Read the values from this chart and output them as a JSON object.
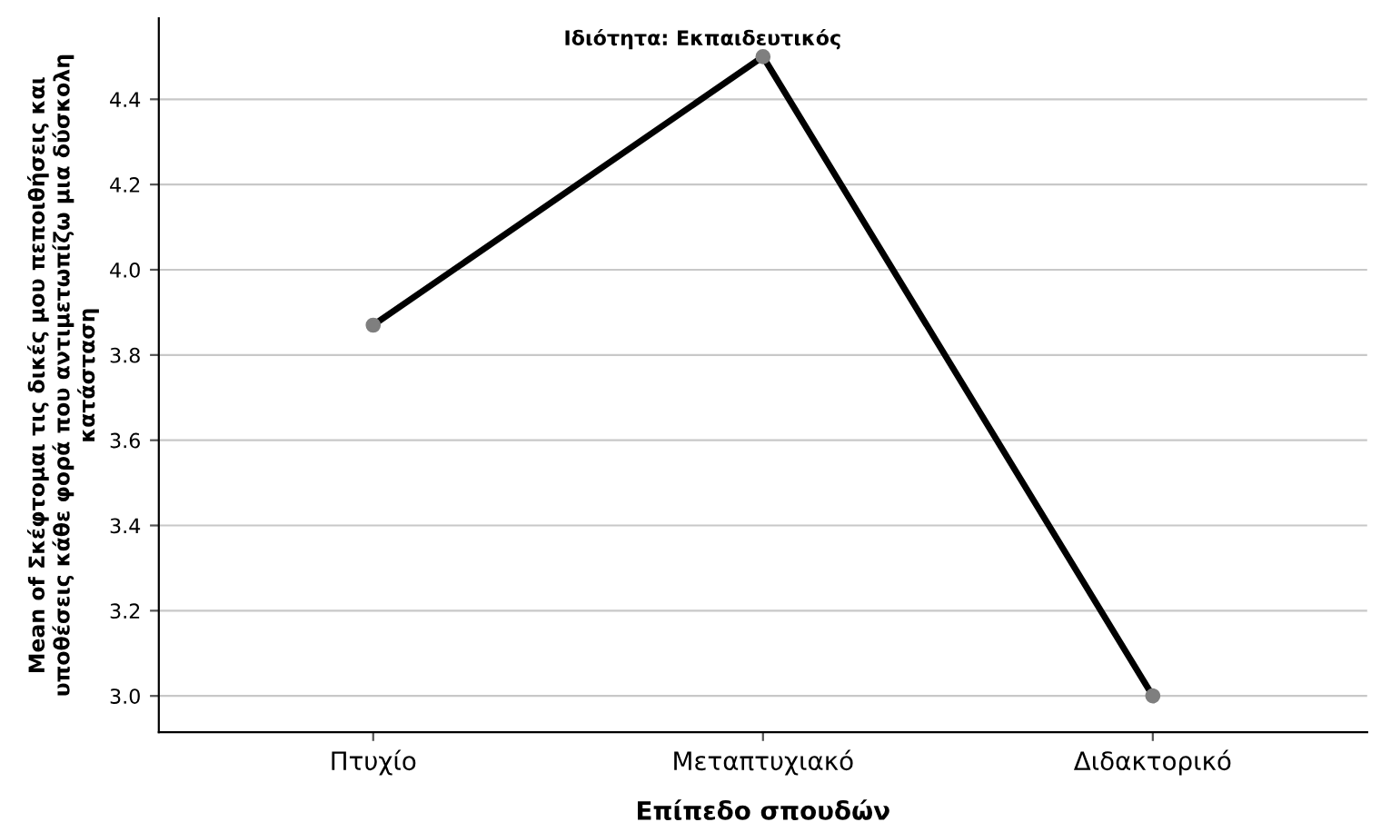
{
  "chart_data": {
    "type": "line",
    "xlabel": "Επίπεδο σπουδών",
    "ylabel": "Mean of Σκέφτομαι τις δικές μου πεποιθήσεις και\nυποθέσεις κάθε φορά που αντιμετωπίζω μια δύσκολη\nκατάσταση",
    "annotations": [
      "Ιδιότητα: Εκπαιδευτικός"
    ],
    "categories": [
      "Πτυχίο",
      "Μεταπτυχιακό",
      "Διδακτορικό"
    ],
    "series": [
      {
        "color": "#000000",
        "values": [
          3.87,
          4.5,
          3.0
        ]
      }
    ],
    "ylim": [
      2.915,
      4.59
    ],
    "yticks": [
      {
        "value": 3.0,
        "label": "3.0"
      },
      {
        "value": 3.2,
        "label": "3.2"
      },
      {
        "value": 3.4,
        "label": "3.4"
      },
      {
        "value": 3.6,
        "label": "3.6"
      },
      {
        "value": 3.8,
        "label": "3.8"
      },
      {
        "value": 4.0,
        "label": "4.0"
      },
      {
        "value": 4.2,
        "label": "4.2"
      },
      {
        "value": 4.4,
        "label": "4.4"
      }
    ],
    "grid": "y",
    "legend": false,
    "marker": "circle",
    "line_style": "solid"
  }
}
